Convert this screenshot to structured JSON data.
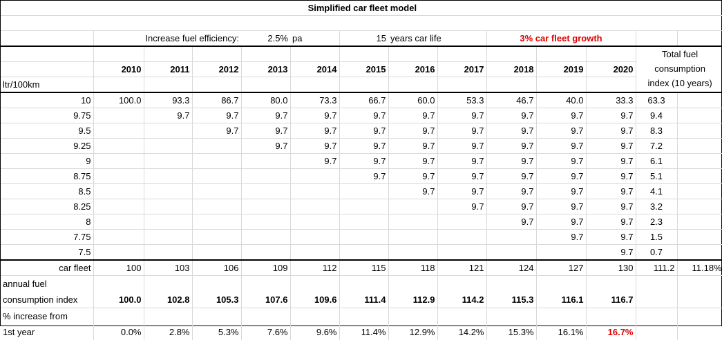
{
  "title": "Simplified car fleet model",
  "assumptions": {
    "efficiency_label": "Increase fuel efficiency:",
    "efficiency_value": "2.5%",
    "efficiency_unit": "pa",
    "life_value": "15",
    "life_label": "years car life",
    "growth_label": "3% car fleet growth"
  },
  "years": [
    "2010",
    "2011",
    "2012",
    "2013",
    "2014",
    "2015",
    "2016",
    "2017",
    "2018",
    "2019",
    "2020"
  ],
  "total_header": [
    "Total fuel",
    "consumption",
    "index (10 years)"
  ],
  "unit_label": "ltr/100km",
  "rows": [
    {
      "label": "10",
      "cells": [
        "100.0",
        "93.3",
        "86.7",
        "80.0",
        "73.3",
        "66.7",
        "60.0",
        "53.3",
        "46.7",
        "40.0",
        "33.3"
      ],
      "total": "63.3"
    },
    {
      "label": "9.75",
      "cells": [
        "",
        "9.7",
        "9.7",
        "9.7",
        "9.7",
        "9.7",
        "9.7",
        "9.7",
        "9.7",
        "9.7",
        "9.7"
      ],
      "total": "9.4"
    },
    {
      "label": "9.5",
      "cells": [
        "",
        "",
        "9.7",
        "9.7",
        "9.7",
        "9.7",
        "9.7",
        "9.7",
        "9.7",
        "9.7",
        "9.7"
      ],
      "total": "8.3"
    },
    {
      "label": "9.25",
      "cells": [
        "",
        "",
        "",
        "9.7",
        "9.7",
        "9.7",
        "9.7",
        "9.7",
        "9.7",
        "9.7",
        "9.7"
      ],
      "total": "7.2"
    },
    {
      "label": "9",
      "cells": [
        "",
        "",
        "",
        "",
        "9.7",
        "9.7",
        "9.7",
        "9.7",
        "9.7",
        "9.7",
        "9.7"
      ],
      "total": "6.1"
    },
    {
      "label": "8.75",
      "cells": [
        "",
        "",
        "",
        "",
        "",
        "9.7",
        "9.7",
        "9.7",
        "9.7",
        "9.7",
        "9.7"
      ],
      "total": "5.1"
    },
    {
      "label": "8.5",
      "cells": [
        "",
        "",
        "",
        "",
        "",
        "",
        "9.7",
        "9.7",
        "9.7",
        "9.7",
        "9.7"
      ],
      "total": "4.1"
    },
    {
      "label": "8.25",
      "cells": [
        "",
        "",
        "",
        "",
        "",
        "",
        "",
        "9.7",
        "9.7",
        "9.7",
        "9.7"
      ],
      "total": "3.2"
    },
    {
      "label": "8",
      "cells": [
        "",
        "",
        "",
        "",
        "",
        "",
        "",
        "",
        "9.7",
        "9.7",
        "9.7"
      ],
      "total": "2.3"
    },
    {
      "label": "7.75",
      "cells": [
        "",
        "",
        "",
        "",
        "",
        "",
        "",
        "",
        "",
        "9.7",
        "9.7"
      ],
      "total": "1.5"
    },
    {
      "label": "7.5",
      "cells": [
        "",
        "",
        "",
        "",
        "",
        "",
        "",
        "",
        "",
        "",
        "9.7"
      ],
      "total": "0.7"
    }
  ],
  "car_fleet": {
    "label": "car fleet",
    "values": [
      "100",
      "103",
      "106",
      "109",
      "112",
      "115",
      "118",
      "121",
      "124",
      "127",
      "130"
    ],
    "total": "111.2",
    "extra": "11.18%"
  },
  "annual": {
    "label_1": "annual fuel",
    "label_2": "consumption index",
    "values": [
      "100.0",
      "102.8",
      "105.3",
      "107.6",
      "109.6",
      "111.4",
      "112.9",
      "114.2",
      "115.3",
      "116.1",
      "116.7"
    ]
  },
  "increase": {
    "label_1": "% increase from",
    "label_2": "1st year",
    "values": [
      "0.0%",
      "2.8%",
      "5.3%",
      "7.6%",
      "9.6%",
      "11.4%",
      "12.9%",
      "14.2%",
      "15.3%",
      "16.1%",
      "16.7%"
    ],
    "highlight_color": "#e00000"
  },
  "grid_color": "#d9d9d9"
}
